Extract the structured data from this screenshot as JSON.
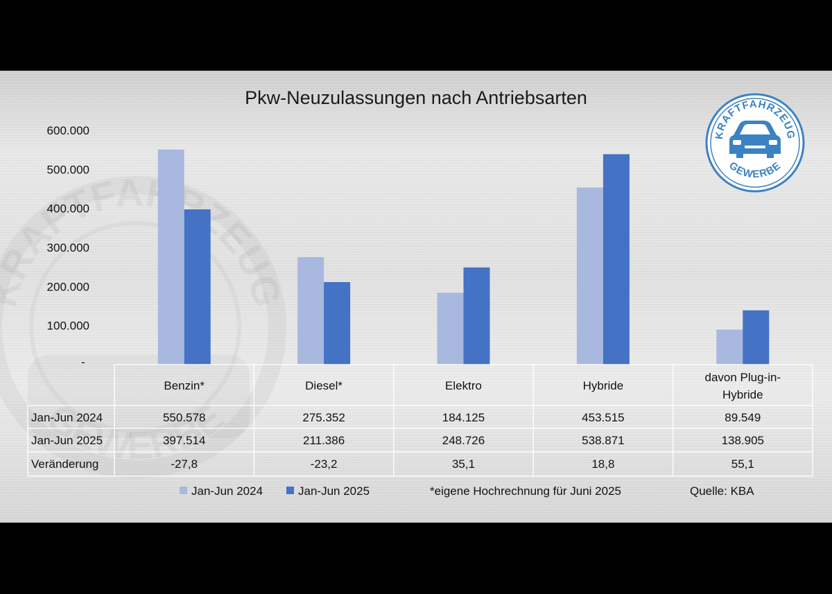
{
  "chart_data": {
    "type": "bar",
    "title": "Pkw-Neuzulassungen nach Antriebsarten",
    "categories": [
      [
        "Benzin*"
      ],
      [
        "Diesel*"
      ],
      [
        "Elektro"
      ],
      [
        "Hybride"
      ],
      [
        "davon Plug-in-",
        "Hybride"
      ]
    ],
    "series": [
      {
        "name": "Jan-Jun 2024",
        "values": [
          550578,
          275352,
          184125,
          453515,
          89549
        ],
        "color": "#a9b8df"
      },
      {
        "name": "Jan-Jun 2025",
        "values": [
          397514,
          211386,
          248726,
          538871,
          138905
        ],
        "color": "#4472c4"
      }
    ],
    "ylim": [
      0,
      600000
    ],
    "y_ticks": [
      0,
      100000,
      200000,
      300000,
      400000,
      500000,
      600000
    ],
    "y_tick_labels": [
      "-",
      "100.000",
      "200.000",
      "300.000",
      "400.000",
      "500.000",
      "600.000"
    ],
    "grid": false,
    "table": {
      "rows": [
        {
          "label": "Jan-Jun 2024",
          "cells": [
            "550.578",
            "275.352",
            "184.125",
            "453.515",
            "89.549"
          ]
        },
        {
          "label": "Jan-Jun 2025",
          "cells": [
            "397.514",
            "211.386",
            "248.726",
            "538.871",
            "138.905"
          ]
        },
        {
          "label": "Veränderung",
          "cells": [
            "-27,8",
            "-23,2",
            "35,1",
            "18,8",
            "55,1"
          ]
        }
      ]
    },
    "legend": {
      "position": "bottom"
    },
    "footnote": "*eigene Hochrechnung für Juni 2025",
    "source": "Quelle: KBA"
  },
  "badge": {
    "top_text": "KRAFTFAHRZEUG",
    "bottom_text": "GEWERBE",
    "color": "#3b82c4"
  },
  "watermark": {
    "top_text": "KRAFTFAHRZEUG",
    "bottom_text": "GEWERBE"
  }
}
